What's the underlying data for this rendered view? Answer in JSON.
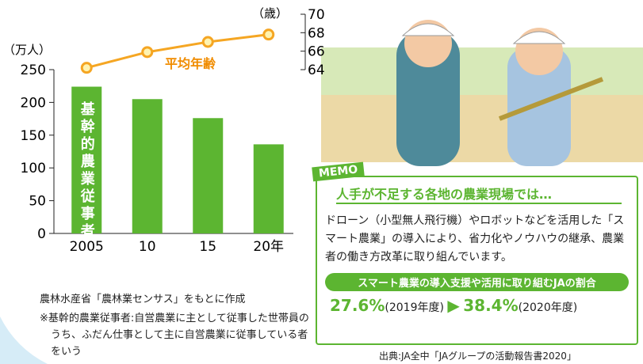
{
  "chart_data": {
    "type": "bar",
    "categories": [
      "2005",
      "10",
      "15",
      "20年"
    ],
    "y_label": "（万人）",
    "y2_label": "（歳）",
    "series": [
      {
        "name": "基幹的農業従事者",
        "color": "#5cb531",
        "values": [
          224,
          205,
          176,
          136
        ]
      },
      {
        "name": "平均年齢",
        "color": "#f5a623",
        "type": "line",
        "axis": "y2",
        "values": [
          64.2,
          65.9,
          67.0,
          67.8
        ]
      }
    ],
    "ylim": [
      0,
      250
    ],
    "yticks": [
      0,
      50,
      100,
      150,
      200,
      250
    ],
    "y2lim": [
      64,
      70
    ],
    "y2ticks": [
      64,
      66,
      68,
      70
    ]
  },
  "notes": [
    "農林水産省「農林業センサス」をもとに作成",
    "※基幹的農業従事者:自営農業に主として従事した世帯員のうち、ふだん仕事として主に自営農業に従事している者をいう"
  ],
  "memo": {
    "tag": "MEMO",
    "title": "人手が不足する各地の農業現場では…",
    "body": "ドローン（小型無人飛行機）やロボットなどを活用した「スマート農業」の導入により、省力化やノウハウの継承、農業者の働き方改革に取り組んでいます。",
    "pill": "スマート農業の導入支援や活用に取り組むJAの割合",
    "stat1": "27.6%",
    "year1": "(2019年度)",
    "stat2": "38.4%",
    "year2": "(2020年度)"
  },
  "source": "出典:JA全中「JAグループの活動報告書2020」"
}
